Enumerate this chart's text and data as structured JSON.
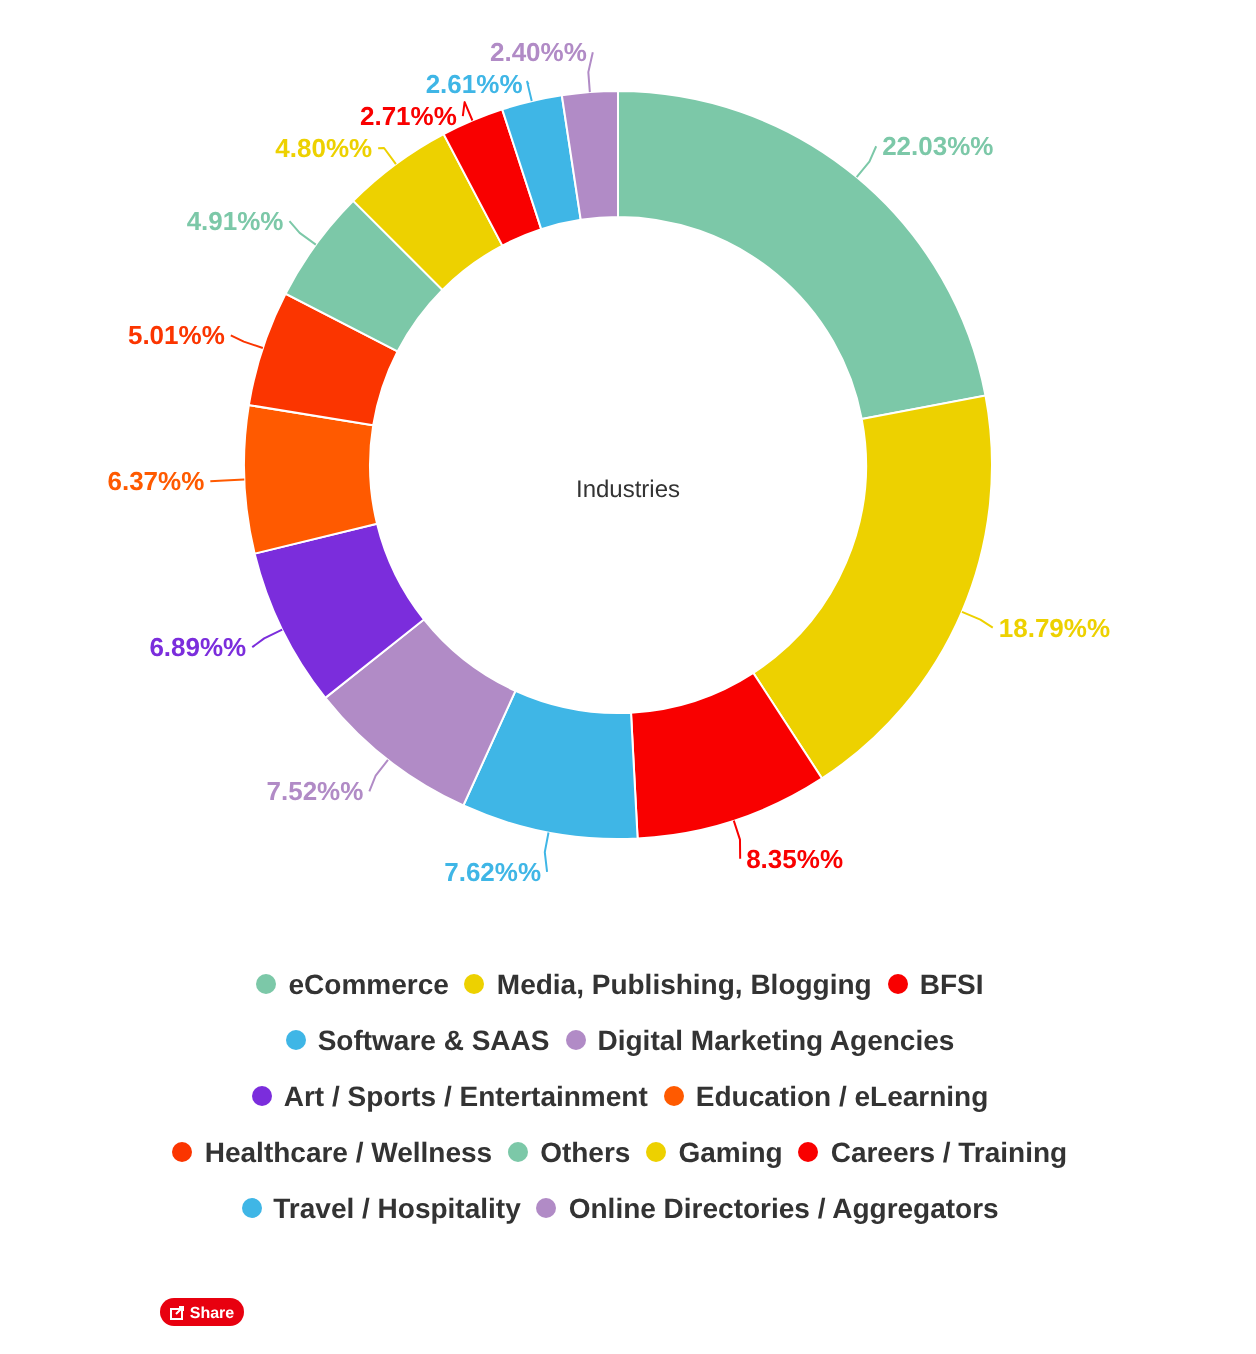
{
  "chart_data": {
    "type": "donut",
    "title": "Industries",
    "categories": [
      "eCommerce",
      "Media, Publishing, Blogging",
      "BFSI",
      "Software & SAAS",
      "Digital Marketing Agencies",
      "Art / Sports / Entertainment",
      "Education / eLearning",
      "Healthcare / Wellness",
      "Others",
      "Gaming",
      "Careers / Training",
      "Travel / Hospitality",
      "Online Directories / Aggregators"
    ],
    "values": [
      22.03,
      18.79,
      8.35,
      7.62,
      7.52,
      6.89,
      6.37,
      5.01,
      4.91,
      4.8,
      2.71,
      2.61,
      2.4
    ],
    "colors": [
      "#7cc8a8",
      "#edd100",
      "#f90000",
      "#3fb6e6",
      "#b18bc6",
      "#7b2ddc",
      "#ff5a00",
      "#fb3500",
      "#7cc8a8",
      "#edd100",
      "#f90000",
      "#3fb6e6",
      "#b18bc6"
    ],
    "value_labels": [
      "22.03%%",
      "18.79%%",
      "8.35%%",
      "7.62%%",
      "7.52%%",
      "6.89%%",
      "6.37%%",
      "5.01%%",
      "4.91%%",
      "4.80%%",
      "2.71%%",
      "2.61%%",
      "2.40%%"
    ],
    "legend": "bottom",
    "annotations": [
      "Share"
    ]
  }
}
